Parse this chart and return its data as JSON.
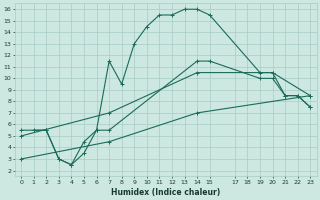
{
  "xlabel": "Humidex (Indice chaleur)",
  "bg_color": "#cce8e0",
  "grid_color": "#a8ccc4",
  "line_color": "#1a6b5a",
  "xlim": [
    -0.5,
    23.5
  ],
  "ylim": [
    1.5,
    16.5
  ],
  "xticks": [
    0,
    1,
    2,
    3,
    4,
    5,
    6,
    7,
    8,
    9,
    10,
    11,
    12,
    13,
    14,
    15,
    17,
    18,
    19,
    20,
    21,
    22,
    23
  ],
  "yticks": [
    2,
    3,
    4,
    5,
    6,
    7,
    8,
    9,
    10,
    11,
    12,
    13,
    14,
    15,
    16
  ],
  "line1_x": [
    1,
    2,
    3,
    4,
    5,
    6,
    7,
    8,
    9,
    10,
    11,
    12,
    13,
    14,
    15,
    19,
    20,
    21,
    22,
    23
  ],
  "line1_y": [
    5.5,
    5.5,
    3.0,
    2.5,
    4.5,
    5.5,
    11.5,
    9.5,
    13.0,
    14.5,
    15.5,
    15.5,
    16.0,
    16.0,
    15.5,
    10.5,
    10.5,
    8.5,
    8.5,
    7.5
  ],
  "line2_x": [
    0,
    2,
    3,
    4,
    5,
    6,
    7,
    14,
    15,
    19,
    20,
    21,
    22,
    23
  ],
  "line2_y": [
    5.5,
    5.5,
    3.0,
    2.5,
    3.5,
    5.5,
    5.5,
    11.5,
    11.5,
    10.0,
    10.0,
    8.5,
    8.5,
    7.5
  ],
  "line3_x": [
    0,
    7,
    14,
    20,
    23
  ],
  "line3_y": [
    5.0,
    7.0,
    10.5,
    10.5,
    8.5
  ],
  "line4_x": [
    0,
    7,
    14,
    23
  ],
  "line4_y": [
    3.0,
    4.5,
    7.0,
    8.5
  ]
}
